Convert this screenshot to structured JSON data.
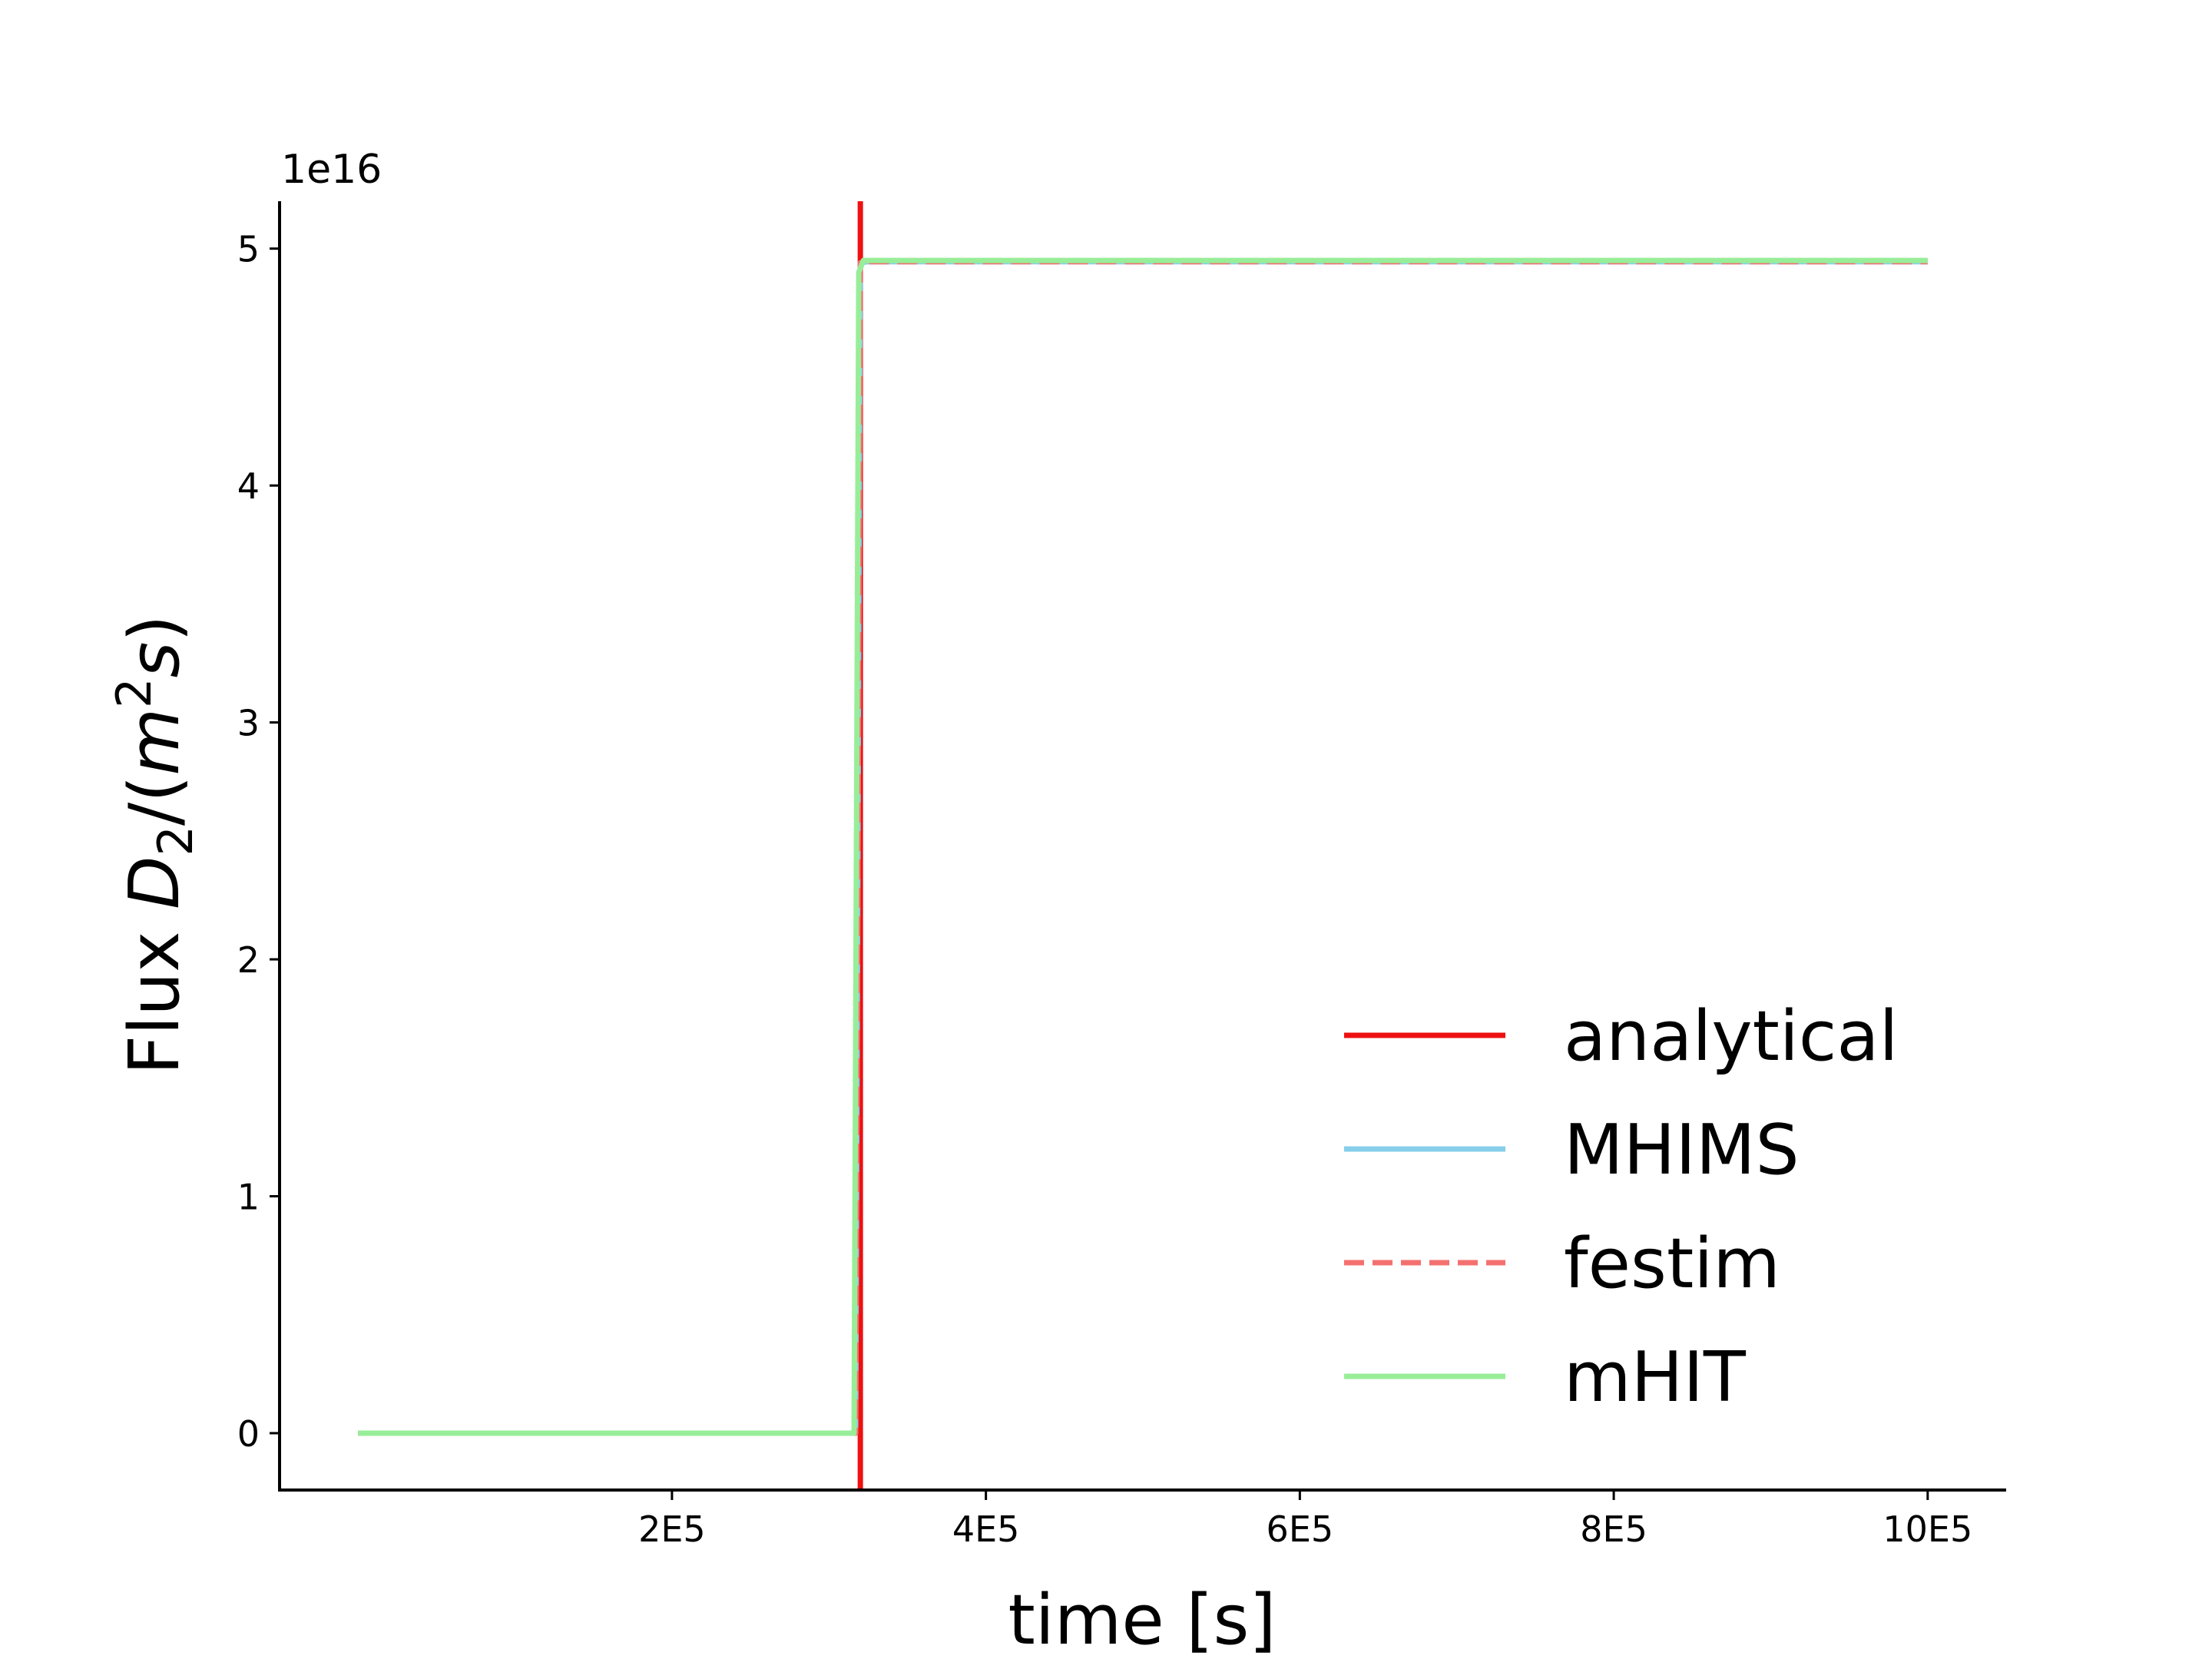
{
  "chart_data": {
    "type": "line",
    "xlabel": "time [s]",
    "ylabel_parts": {
      "prefix": "Flux ",
      "var": "D",
      "sub": "2",
      "mid": "/(",
      "m": "m",
      "sup": "2",
      "s": "s",
      "close": ")"
    },
    "y_offset_label": "1e16",
    "xlim": [
      -50000,
      1050000
    ],
    "ylim": [
      -2400000000000000.0,
      5.2e+16
    ],
    "x_ticks": [
      {
        "value": 200000,
        "label": "2E5"
      },
      {
        "value": 400000,
        "label": "4E5"
      },
      {
        "value": 600000,
        "label": "6E5"
      },
      {
        "value": 800000,
        "label": "8E5"
      },
      {
        "value": 1000000,
        "label": "10E5"
      }
    ],
    "y_ticks": [
      {
        "value": 0,
        "label": "0"
      },
      {
        "value": 1e+16,
        "label": "1"
      },
      {
        "value": 2e+16,
        "label": "2"
      },
      {
        "value": 3e+16,
        "label": "3"
      },
      {
        "value": 4e+16,
        "label": "4"
      },
      {
        "value": 5e+16,
        "label": "5"
      }
    ],
    "legend_position": "lower right",
    "series": [
      {
        "name": "analytical",
        "color": "#ee1111",
        "style": "solid",
        "vertical_x": 320000
      },
      {
        "name": "MHIMS",
        "color": "#87ceeb",
        "style": "solid",
        "x": [
          0,
          317000,
          320000,
          325000,
          1000000
        ],
        "y": [
          0,
          0,
          4.94e+16,
          4.945e+16,
          4.945e+16
        ]
      },
      {
        "name": "festim",
        "color": "#f47070",
        "style": "dashed",
        "x": [
          0,
          317000,
          320000,
          325000,
          1000000
        ],
        "y": [
          0,
          0,
          4.94e+16,
          4.945e+16,
          4.945e+16
        ]
      },
      {
        "name": "mHIT",
        "color": "#98ee98",
        "style": "solid",
        "x": [
          0,
          316000,
          319000,
          322000,
          1000000
        ],
        "y": [
          0,
          0,
          4.9e+16,
          4.95e+16,
          4.95e+16
        ]
      }
    ]
  }
}
